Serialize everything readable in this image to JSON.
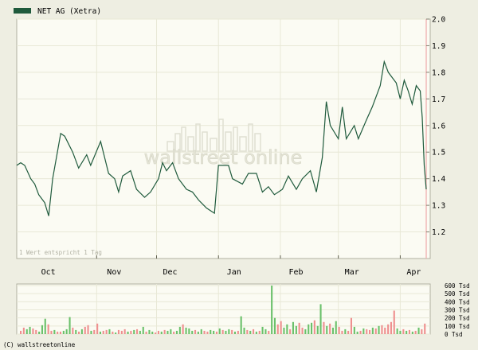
{
  "legend": {
    "label": "NET AG (Xetra)",
    "color": "#1f5a3c"
  },
  "watermark": "wallstreet online",
  "footnote": "1 Wert entspricht 1 Tag",
  "copyright": "(C) wallstreetonline",
  "colors": {
    "background": "#eeeee2",
    "plot_background": "#fbfbf3",
    "grid": "#e8e8d6",
    "price_line": "#1f5a3c",
    "volume_green": "#6ac06a",
    "volume_red": "#ee8f8f",
    "price_axis_line": "#f0b4b4"
  },
  "chart_data": [
    {
      "type": "line",
      "title": "NET AG (Xetra)",
      "ylim": [
        1.1,
        2.0
      ],
      "yticks": [
        "2.0",
        "1.9",
        "1.8",
        "1.7",
        "1.6",
        "1.5",
        "1.4",
        "1.3",
        "1.2"
      ],
      "xticks": [
        "Oct",
        "Nov",
        "Dec",
        "Jan",
        "Feb",
        "Mar",
        "Apr"
      ],
      "x_start": "2003-09-22",
      "x_end": "2004-04-14",
      "xtick_dates": [
        "2003-10-01",
        "2003-11-03",
        "2003-12-01",
        "2004-01-02",
        "2004-02-02",
        "2004-03-01",
        "2004-04-01"
      ],
      "month_gridline_dates": [
        "2003-11-01",
        "2003-12-01",
        "2004-01-01",
        "2004-02-01",
        "2004-03-01",
        "2004-04-01"
      ],
      "series": [
        {
          "name": "NET AG (Xetra)",
          "points": [
            [
              "2003-09-22",
              1.45
            ],
            [
              "2003-09-24",
              1.46
            ],
            [
              "2003-09-26",
              1.45
            ],
            [
              "2003-09-29",
              1.4
            ],
            [
              "2003-10-01",
              1.38
            ],
            [
              "2003-10-03",
              1.34
            ],
            [
              "2003-10-06",
              1.31
            ],
            [
              "2003-10-08",
              1.26
            ],
            [
              "2003-10-10",
              1.4
            ],
            [
              "2003-10-14",
              1.57
            ],
            [
              "2003-10-16",
              1.56
            ],
            [
              "2003-10-20",
              1.5
            ],
            [
              "2003-10-23",
              1.44
            ],
            [
              "2003-10-27",
              1.49
            ],
            [
              "2003-10-29",
              1.45
            ],
            [
              "2003-11-03",
              1.54
            ],
            [
              "2003-11-05",
              1.48
            ],
            [
              "2003-11-07",
              1.42
            ],
            [
              "2003-11-10",
              1.4
            ],
            [
              "2003-11-12",
              1.35
            ],
            [
              "2003-11-14",
              1.41
            ],
            [
              "2003-11-18",
              1.43
            ],
            [
              "2003-11-21",
              1.36
            ],
            [
              "2003-11-25",
              1.33
            ],
            [
              "2003-11-28",
              1.35
            ],
            [
              "2003-12-02",
              1.4
            ],
            [
              "2003-12-04",
              1.46
            ],
            [
              "2003-12-06",
              1.43
            ],
            [
              "2003-12-09",
              1.46
            ],
            [
              "2003-12-12",
              1.4
            ],
            [
              "2003-12-16",
              1.36
            ],
            [
              "2003-12-19",
              1.35
            ],
            [
              "2003-12-22",
              1.32
            ],
            [
              "2003-12-26",
              1.29
            ],
            [
              "2003-12-30",
              1.27
            ],
            [
              "2004-01-01",
              1.45
            ],
            [
              "2004-01-06",
              1.45
            ],
            [
              "2004-01-08",
              1.4
            ],
            [
              "2004-01-13",
              1.38
            ],
            [
              "2004-01-16",
              1.42
            ],
            [
              "2004-01-20",
              1.42
            ],
            [
              "2004-01-23",
              1.35
            ],
            [
              "2004-01-26",
              1.37
            ],
            [
              "2004-01-29",
              1.34
            ],
            [
              "2004-02-02",
              1.36
            ],
            [
              "2004-02-05",
              1.41
            ],
            [
              "2004-02-09",
              1.36
            ],
            [
              "2004-02-12",
              1.4
            ],
            [
              "2004-02-16",
              1.43
            ],
            [
              "2004-02-19",
              1.35
            ],
            [
              "2004-02-22",
              1.48
            ],
            [
              "2004-02-24",
              1.69
            ],
            [
              "2004-02-26",
              1.6
            ],
            [
              "2004-03-01",
              1.55
            ],
            [
              "2004-03-03",
              1.67
            ],
            [
              "2004-03-05",
              1.55
            ],
            [
              "2004-03-09",
              1.6
            ],
            [
              "2004-03-11",
              1.55
            ],
            [
              "2004-03-15",
              1.62
            ],
            [
              "2004-03-18",
              1.67
            ],
            [
              "2004-03-22",
              1.75
            ],
            [
              "2004-03-24",
              1.84
            ],
            [
              "2004-03-26",
              1.8
            ],
            [
              "2004-03-28",
              1.78
            ],
            [
              "2004-03-30",
              1.76
            ],
            [
              "2004-04-01",
              1.7
            ],
            [
              "2004-04-03",
              1.77
            ],
            [
              "2004-04-05",
              1.73
            ],
            [
              "2004-04-07",
              1.68
            ],
            [
              "2004-04-09",
              1.75
            ],
            [
              "2004-04-11",
              1.73
            ],
            [
              "2004-04-12",
              1.63
            ],
            [
              "2004-04-13",
              1.45
            ],
            [
              "2004-04-14",
              1.36
            ]
          ]
        }
      ]
    },
    {
      "type": "bar",
      "ylim": [
        0,
        600
      ],
      "ylabel": "Tsd",
      "yticks": [
        "600 Tsd",
        "500 Tsd",
        "400 Tsd",
        "300 Tsd",
        "200 Tsd",
        "100 Tsd",
        "0 Tsd"
      ],
      "series": [
        {
          "values": [
            40,
            80,
            60,
            90,
            70,
            50,
            30,
            110,
            190,
            120,
            40,
            50,
            30,
            30,
            40,
            60,
            210,
            80,
            50,
            30,
            60,
            90,
            110,
            40,
            50,
            130,
            30,
            40,
            50,
            60,
            30,
            20,
            50,
            40,
            60,
            30,
            40,
            50,
            60,
            40,
            90,
            30,
            50,
            30,
            20,
            40,
            30,
            50,
            40,
            60,
            30,
            40,
            90,
            120,
            80,
            70,
            40,
            50,
            30,
            60,
            40,
            30,
            50,
            40,
            30,
            70,
            50,
            40,
            60,
            50,
            30,
            40,
            220,
            80,
            50,
            40,
            60,
            30,
            40,
            90,
            60,
            40,
            620,
            200,
            120,
            160,
            80,
            120,
            60,
            150,
            100,
            140,
            80,
            60,
            120,
            140,
            170,
            100,
            370,
            150,
            100,
            130,
            80,
            160,
            90,
            40,
            60,
            40,
            200,
            90,
            30,
            40,
            70,
            60,
            50,
            80,
            70,
            100,
            110,
            80,
            120,
            150,
            290,
            70,
            40,
            60,
            40,
            50,
            30,
            40,
            80,
            60,
            130
          ],
          "colors": [
            "r",
            "r",
            "g",
            "g",
            "r",
            "r",
            "g",
            "g",
            "g",
            "r",
            "r",
            "g",
            "r",
            "r",
            "g",
            "g",
            "g",
            "r",
            "g",
            "r",
            "g",
            "r",
            "r",
            "g",
            "r",
            "r",
            "g",
            "r",
            "r",
            "g",
            "r",
            "g",
            "r",
            "r",
            "r",
            "g",
            "r",
            "g",
            "r",
            "g",
            "g",
            "r",
            "g",
            "g",
            "r",
            "r",
            "g",
            "r",
            "g",
            "g",
            "r",
            "g",
            "g",
            "r",
            "g",
            "g",
            "g",
            "r",
            "g",
            "g",
            "r",
            "r",
            "g",
            "g",
            "r",
            "g",
            "r",
            "g",
            "g",
            "r",
            "g",
            "r",
            "g",
            "g",
            "r",
            "g",
            "r",
            "g",
            "r",
            "g",
            "g",
            "r",
            "g",
            "g",
            "r",
            "r",
            "g",
            "g",
            "r",
            "g",
            "g",
            "r",
            "r",
            "g",
            "g",
            "g",
            "r",
            "g",
            "g",
            "r",
            "g",
            "r",
            "g",
            "g",
            "r",
            "r",
            "g",
            "r",
            "r",
            "g",
            "g",
            "r",
            "g",
            "r",
            "r",
            "g",
            "r",
            "g",
            "r",
            "r",
            "r",
            "r",
            "r",
            "g",
            "g",
            "r",
            "g",
            "r",
            "g",
            "r",
            "g",
            "r",
            "r"
          ]
        }
      ]
    }
  ]
}
